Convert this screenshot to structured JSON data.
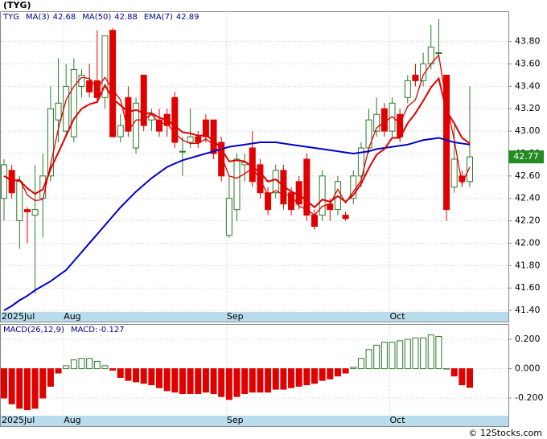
{
  "chart_data": [
    {
      "type": "candlestick",
      "title": "(TYG)",
      "symbol": "TYG",
      "categories": [
        "2025Jul",
        null,
        null,
        null,
        null,
        null,
        null,
        null,
        "Aug",
        null,
        null,
        null,
        null,
        null,
        null,
        null,
        null,
        null,
        null,
        null,
        null,
        null,
        null,
        null,
        null,
        null,
        null,
        null,
        null,
        "Sep",
        null,
        null,
        null,
        null,
        null,
        null,
        null,
        null,
        null,
        null,
        null,
        null,
        null,
        null,
        null,
        null,
        null,
        null,
        null,
        null,
        "Oct",
        null,
        null,
        null,
        null,
        null,
        null,
        null,
        null,
        null,
        null
      ],
      "open": [
        42.4,
        42.65,
        42.2,
        42.3,
        42.25,
        42.4,
        42.6,
        43.1,
        43.0,
        42.95,
        43.4,
        43.45,
        43.45,
        43.3,
        43.9,
        42.95,
        43.3,
        42.85,
        43.5,
        43.1,
        43.1,
        43.15,
        43.3,
        42.82,
        42.9,
        42.95,
        43.1,
        43.1,
        42.9,
        42.07,
        42.3,
        42.7,
        42.85,
        42.7,
        42.45,
        42.45,
        42.65,
        42.45,
        42.55,
        42.75,
        42.25,
        42.25,
        42.35,
        42.3,
        42.25,
        42.4,
        42.6,
        42.85,
        43.0,
        43.2,
        43.0,
        43.15,
        43.3,
        43.5,
        43.45,
        43.6,
        43.7,
        43.5,
        42.5,
        42.6,
        42.55
      ],
      "high": [
        42.75,
        42.7,
        42.6,
        42.32,
        42.7,
        42.8,
        43.4,
        43.65,
        43.6,
        43.65,
        43.55,
        43.6,
        43.9,
        43.85,
        43.92,
        43.15,
        43.4,
        43.3,
        43.5,
        43.2,
        43.2,
        43.2,
        43.35,
        42.95,
        43.2,
        43.0,
        43.15,
        43.1,
        42.95,
        42.6,
        42.8,
        42.8,
        43.0,
        42.75,
        42.5,
        42.7,
        42.7,
        42.5,
        42.6,
        42.8,
        42.3,
        42.65,
        42.4,
        42.6,
        42.28,
        42.65,
        42.9,
        43.2,
        43.3,
        43.25,
        43.3,
        43.2,
        43.5,
        43.6,
        43.7,
        43.95,
        44.0,
        43.5,
        43.05,
        42.65,
        43.4
      ],
      "low": [
        42.2,
        42.4,
        41.95,
        42.0,
        41.55,
        42.05,
        42.55,
        42.9,
        42.95,
        42.9,
        43.3,
        43.3,
        43.25,
        43.2,
        42.95,
        42.9,
        42.95,
        42.8,
        43.0,
        43.0,
        42.95,
        42.95,
        42.85,
        42.6,
        42.85,
        42.85,
        42.9,
        42.75,
        42.55,
        42.05,
        42.2,
        42.55,
        42.5,
        42.4,
        42.25,
        42.4,
        42.3,
        42.25,
        42.3,
        42.2,
        42.12,
        42.2,
        42.2,
        42.25,
        42.2,
        42.35,
        42.5,
        42.8,
        42.95,
        42.95,
        42.95,
        42.9,
        43.25,
        43.4,
        43.4,
        43.55,
        43.65,
        42.2,
        42.45,
        42.5,
        42.5
      ],
      "close": [
        42.7,
        42.45,
        42.55,
        42.28,
        42.3,
        42.6,
        43.2,
        43.25,
        43.4,
        43.55,
        43.5,
        43.35,
        43.3,
        43.85,
        42.95,
        43.05,
        43.0,
        43.25,
        43.05,
        43.15,
        43.0,
        43.05,
        42.9,
        42.82,
        42.95,
        42.9,
        42.95,
        42.8,
        42.6,
        42.4,
        42.75,
        42.72,
        42.55,
        42.45,
        42.3,
        42.65,
        42.35,
        42.3,
        42.35,
        42.25,
        42.15,
        42.6,
        42.3,
        42.55,
        42.22,
        42.6,
        42.85,
        43.1,
        43.15,
        43.0,
        43.25,
        42.95,
        43.45,
        43.45,
        43.6,
        43.75,
        43.7,
        42.3,
        42.75,
        42.55,
        42.77
      ],
      "series": [
        {
          "name": "MA(3)",
          "color": "#e00000",
          "values": [
            42.6,
            42.55,
            42.57,
            42.43,
            42.38,
            42.39,
            42.7,
            43.02,
            43.28,
            43.4,
            43.48,
            43.47,
            43.38,
            43.48,
            43.37,
            43.28,
            43.0,
            43.1,
            43.1,
            43.15,
            43.07,
            43.07,
            42.98,
            42.92,
            42.89,
            42.89,
            42.93,
            42.88,
            42.78,
            42.6,
            42.58,
            42.62,
            42.67,
            42.57,
            42.43,
            42.47,
            42.43,
            42.43,
            42.33,
            42.3,
            42.25,
            42.33,
            42.35,
            42.48,
            42.36,
            42.46,
            42.56,
            42.85,
            43.03,
            43.08,
            43.13,
            43.07,
            43.22,
            43.28,
            43.5,
            43.6,
            43.68,
            43.25,
            42.92,
            42.53,
            42.68
          ]
        },
        {
          "name": "MA(50)",
          "color": "#0000cc",
          "values": [
            41.4,
            41.44,
            41.49,
            41.53,
            41.58,
            41.62,
            41.66,
            41.71,
            41.76,
            41.84,
            41.92,
            42.0,
            42.08,
            42.16,
            42.24,
            42.32,
            42.39,
            42.46,
            42.52,
            42.58,
            42.63,
            42.68,
            42.71,
            42.74,
            42.76,
            42.78,
            42.8,
            42.82,
            42.84,
            42.86,
            42.87,
            42.88,
            42.89,
            42.9,
            42.9,
            42.9,
            42.89,
            42.88,
            42.87,
            42.86,
            42.85,
            42.84,
            42.83,
            42.82,
            42.81,
            42.8,
            42.81,
            42.82,
            42.84,
            42.85,
            42.86,
            42.87,
            42.88,
            42.9,
            42.92,
            42.93,
            42.94,
            42.92,
            42.9,
            42.89,
            42.88
          ]
        },
        {
          "name": "EMA(7)",
          "color": "#e00000",
          "values": [
            42.6,
            42.56,
            42.56,
            42.49,
            42.44,
            42.48,
            42.66,
            42.81,
            42.96,
            43.11,
            43.2,
            43.24,
            43.26,
            43.41,
            43.29,
            43.23,
            43.17,
            43.19,
            43.16,
            43.16,
            43.12,
            43.1,
            43.05,
            42.99,
            42.98,
            42.96,
            42.96,
            42.92,
            42.84,
            42.73,
            42.74,
            42.73,
            42.68,
            42.63,
            42.55,
            42.57,
            42.51,
            42.46,
            42.43,
            42.38,
            42.32,
            42.39,
            42.37,
            42.42,
            42.37,
            42.43,
            42.53,
            42.67,
            42.79,
            42.84,
            42.94,
            42.94,
            43.07,
            43.16,
            43.27,
            43.39,
            43.47,
            43.18,
            43.07,
            42.94,
            42.89
          ]
        }
      ],
      "up_color": "#2a7a2a",
      "down_color": "#e00000",
      "grid": true,
      "ylim": [
        41.3,
        44.07
      ],
      "yticks": [
        {
          "value": 41.4,
          "label": "41.40"
        },
        {
          "value": 41.6,
          "label": "41.60"
        },
        {
          "value": 41.8,
          "label": "41.80"
        },
        {
          "value": 42.0,
          "label": "42.00"
        },
        {
          "value": 42.2,
          "label": "42.20"
        },
        {
          "value": 42.4,
          "label": "42.40"
        },
        {
          "value": 42.6,
          "label": "42.60"
        },
        {
          "value": 42.8,
          "label": "42.80"
        },
        {
          "value": 43.0,
          "label": "43.00"
        },
        {
          "value": 43.2,
          "label": "43.20"
        },
        {
          "value": 43.4,
          "label": "43.40"
        },
        {
          "value": 43.6,
          "label": "43.60"
        },
        {
          "value": 43.8,
          "label": "43.80"
        }
      ]
    },
    {
      "type": "bar",
      "title": "MACD(26,12,9)",
      "categories": [
        "2025Jul",
        null,
        null,
        null,
        null,
        null,
        null,
        null,
        "Aug",
        null,
        null,
        null,
        null,
        null,
        null,
        null,
        null,
        null,
        null,
        null,
        null,
        null,
        null,
        null,
        null,
        null,
        null,
        null,
        null,
        "Sep",
        null,
        null,
        null,
        null,
        null,
        null,
        null,
        null,
        null,
        null,
        null,
        null,
        null,
        null,
        null,
        null,
        null,
        null,
        null,
        null,
        "Oct",
        null,
        null,
        null,
        null,
        null,
        null,
        null,
        null,
        null,
        null
      ],
      "series": [
        {
          "name": "MACD:",
          "color": "#e00000",
          "values": [
            -0.2,
            -0.24,
            -0.27,
            -0.28,
            -0.27,
            -0.2,
            -0.12,
            -0.03,
            0.02,
            0.06,
            0.07,
            0.07,
            0.05,
            0.02,
            -0.01,
            -0.06,
            -0.08,
            -0.09,
            -0.1,
            -0.11,
            -0.13,
            -0.15,
            -0.16,
            -0.17,
            -0.17,
            -0.17,
            -0.16,
            -0.17,
            -0.19,
            -0.21,
            -0.19,
            -0.17,
            -0.16,
            -0.16,
            -0.16,
            -0.14,
            -0.14,
            -0.13,
            -0.12,
            -0.11,
            -0.1,
            -0.08,
            -0.07,
            -0.05,
            -0.03,
            0.01,
            0.07,
            0.13,
            0.16,
            0.18,
            0.18,
            0.19,
            0.2,
            0.21,
            0.21,
            0.23,
            0.22,
            0.0,
            -0.05,
            -0.11,
            -0.127
          ]
        }
      ],
      "up_color": "#2a7a2a",
      "grid": true,
      "ylim": [
        -0.315,
        0.299
      ],
      "yticks": [
        {
          "value": 0.2,
          "label": "0.200"
        },
        {
          "value": 0.0,
          "label": "0.000"
        },
        {
          "value": -0.2,
          "label": "-0.200"
        }
      ]
    }
  ],
  "watermark": "© 12Stocks.com"
}
